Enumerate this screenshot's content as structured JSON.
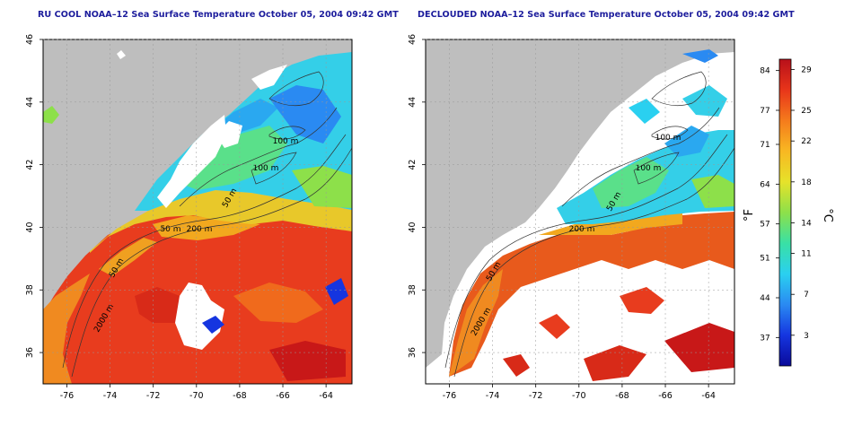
{
  "left_panel": {
    "title": "RU COOL NOAA–12 Sea Surface Temperature October 05, 2004 09:42 GMT",
    "contour_labels": [
      "100 m",
      "100 m",
      "50 m",
      "200 m",
      "50 m",
      "50 m",
      "2000 m"
    ]
  },
  "right_panel": {
    "title": "DECLOUDED NOAA–12 Sea Surface Temperature October 05, 2004 09:42 GMT",
    "contour_labels": [
      "100 m",
      "100 m",
      "50 m",
      "200 m",
      "50 m",
      "2000 m"
    ]
  },
  "axes": {
    "x_ticks": [
      "-76",
      "-74",
      "-72",
      "-70",
      "-68",
      "-66",
      "-64"
    ],
    "y_ticks": [
      "36",
      "38",
      "40",
      "42",
      "44",
      "46"
    ],
    "x_range": [
      -77.1,
      -62.8
    ],
    "y_range": [
      35.0,
      46.0
    ]
  },
  "colorbar": {
    "fahrenheit_ticks": [
      "84",
      "77",
      "71",
      "64",
      "57",
      "51",
      "44",
      "37"
    ],
    "celsius_ticks": [
      "29",
      "25",
      "22",
      "18",
      "14",
      "11",
      "7",
      "3"
    ],
    "left_unit": "°F",
    "right_unit": "°C",
    "range_c": [
      0,
      30
    ],
    "colors": [
      "#0a0a9a",
      "#1535e0",
      "#2a8af2",
      "#2ad0f0",
      "#39e0a5",
      "#8de04a",
      "#e6e22a",
      "#f8b822",
      "#f57b1c",
      "#e8351a",
      "#b8101a"
    ]
  },
  "colors": {
    "land": "#bebebe",
    "cloud": "#ffffff",
    "warm_sst": "#e83c1e",
    "cool_sst": "#34cfe8"
  }
}
